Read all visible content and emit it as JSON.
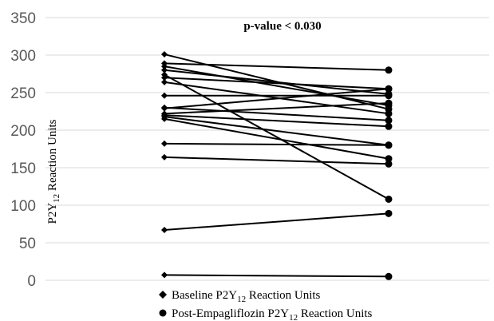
{
  "chart_data": {
    "type": "line",
    "title": "",
    "annotation": "p-value < 0.030",
    "ylabel": {
      "prefix": "P2Y",
      "sub": "12",
      "suffix": " Reaction Units"
    },
    "ylim": [
      0,
      350
    ],
    "yticks": [
      0,
      50,
      100,
      150,
      200,
      250,
      300,
      350
    ],
    "grid": true,
    "categories": [
      "Baseline",
      "Post-Empagliflozin"
    ],
    "legend": {
      "placement": "bottom",
      "entries": [
        {
          "marker": "diamond",
          "prefix": "Baseline P2Y",
          "sub": "12",
          "suffix": " Reaction Units"
        },
        {
          "marker": "circle",
          "prefix": "Post-Empagliflozin P2Y",
          "sub": "12",
          "suffix": " Reaction Units"
        }
      ]
    },
    "color": "#000000",
    "pairs": [
      {
        "baseline": 301,
        "post": 228
      },
      {
        "baseline": 289,
        "post": 280
      },
      {
        "baseline": 285,
        "post": 233
      },
      {
        "baseline": 280,
        "post": 248
      },
      {
        "baseline": 274,
        "post": 108
      },
      {
        "baseline": 270,
        "post": 255
      },
      {
        "baseline": 264,
        "post": 222
      },
      {
        "baseline": 246,
        "post": 246
      },
      {
        "baseline": 230,
        "post": 213
      },
      {
        "baseline": 229,
        "post": 255
      },
      {
        "baseline": 222,
        "post": 236
      },
      {
        "baseline": 220,
        "post": 205
      },
      {
        "baseline": 218,
        "post": 180
      },
      {
        "baseline": 215,
        "post": 162
      },
      {
        "baseline": 182,
        "post": 180
      },
      {
        "baseline": 164,
        "post": 155
      },
      {
        "baseline": 67,
        "post": 89
      },
      {
        "baseline": 7,
        "post": 5
      }
    ]
  }
}
